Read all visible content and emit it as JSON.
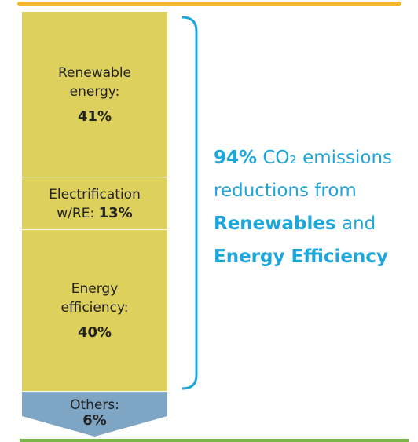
{
  "chart_data": {
    "type": "bar",
    "stacked": true,
    "series": [
      {
        "name": "Renewable energy:",
        "values": [
          41
        ],
        "value_labels": [
          "41%"
        ],
        "color": "#ddd05c"
      },
      {
        "name": "Electrification w/RE:",
        "values": [
          13
        ],
        "value_labels": [
          "13%"
        ],
        "color": "#ddd05c"
      },
      {
        "name": "Energy efficiency:",
        "values": [
          40
        ],
        "value_labels": [
          "40%"
        ],
        "color": "#ddd05c"
      },
      {
        "name": "Others:",
        "values": [
          6
        ],
        "value_labels": [
          "6%"
        ],
        "color": "#7ea5c3"
      }
    ],
    "annotation": [
      [
        {
          "text": "94%",
          "bold": true
        },
        {
          "text": " CO₂ emissions",
          "bold": false
        }
      ],
      [
        {
          "text": "reductions from",
          "bold": false
        }
      ],
      [
        {
          "text": "Renewables",
          "bold": true
        },
        {
          "text": " and",
          "bold": false
        }
      ],
      [
        {
          "text": "Energy Efficiency",
          "bold": true
        }
      ]
    ]
  }
}
